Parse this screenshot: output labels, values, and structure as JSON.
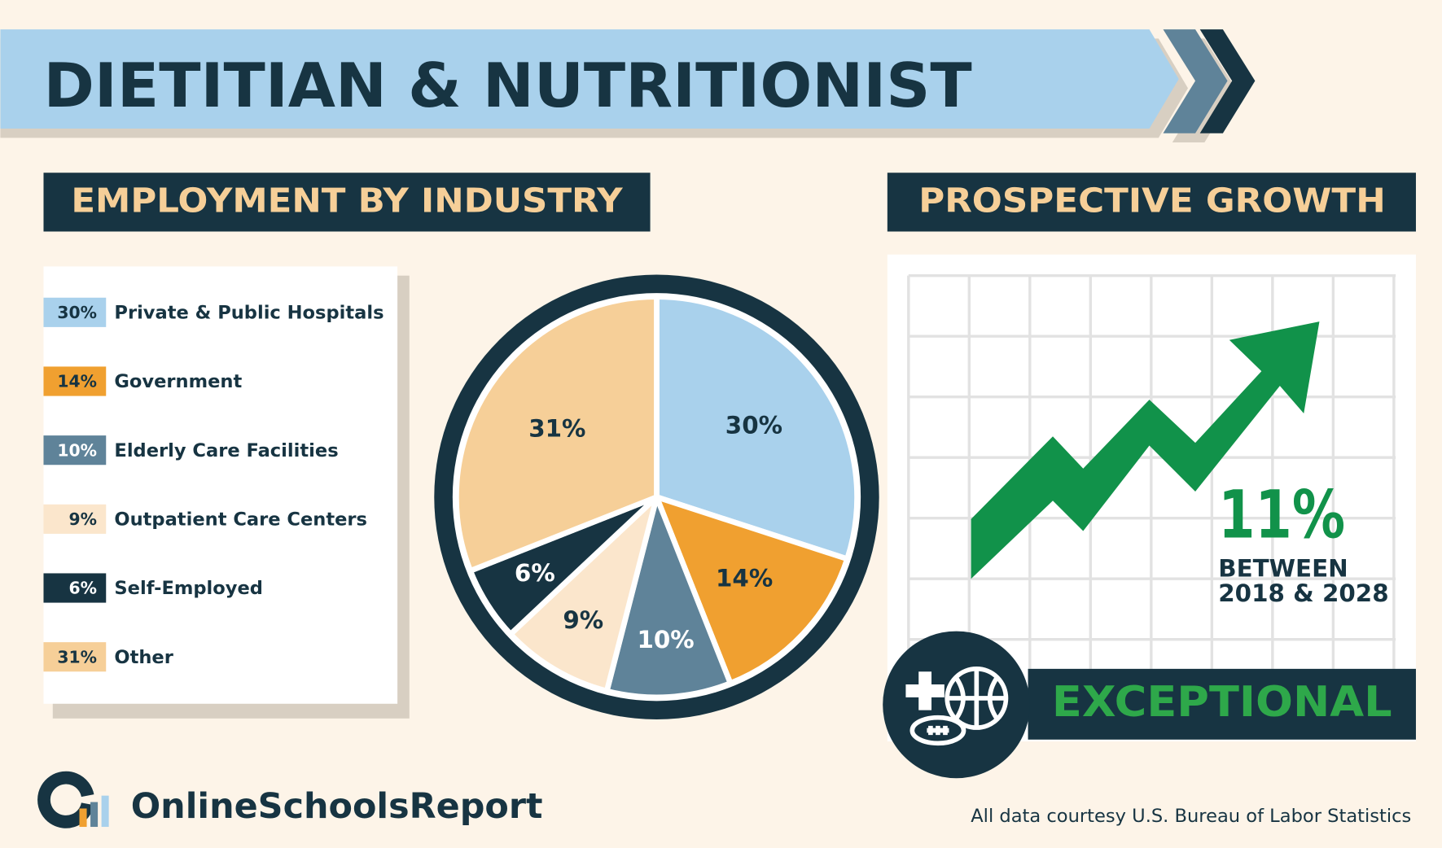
{
  "header": {
    "title": "DIETITIAN & NUTRITIONIST"
  },
  "chart_data": {
    "type": "pie",
    "title": "EMPLOYMENT BY INDUSTRY",
    "categories": [
      "Private & Public Hospitals",
      "Government",
      "Elderly Care Facilities",
      "Outpatient Care Centers",
      "Self-Employed",
      "Other"
    ],
    "values": [
      30,
      14,
      10,
      9,
      6,
      31
    ],
    "value_labels": [
      "30%",
      "14%",
      "10%",
      "9%",
      "6%",
      "31%"
    ],
    "colors": [
      "#a9d1ec",
      "#f0a030",
      "#5f8399",
      "#fbe6cc",
      "#173442",
      "#f6cf98"
    ]
  },
  "growth": {
    "title": "PROSPECTIVE GROWTH",
    "value": "11%",
    "period": [
      "BETWEEN",
      "2018 & 2028"
    ],
    "rating": "EXCEPTIONAL"
  },
  "footer": {
    "brand": "OnlineSchoolsReport",
    "source": "All data courtesy U.S. Bureau of Labor Statistics"
  }
}
